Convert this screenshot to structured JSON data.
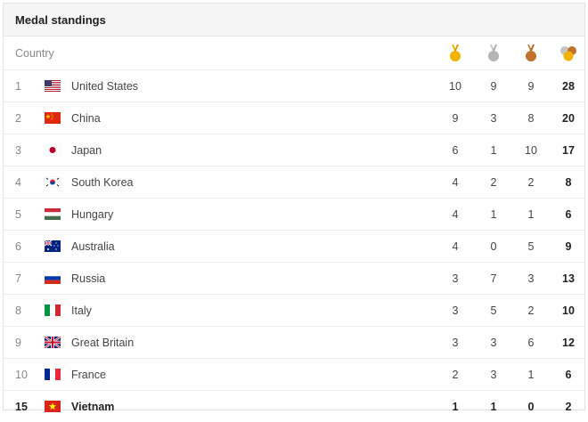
{
  "title": "Medal standings",
  "header": {
    "country_label": "Country",
    "icons": [
      "gold-medal-icon",
      "silver-medal-icon",
      "bronze-medal-icon",
      "total-medals-icon"
    ]
  },
  "colors": {
    "gold": "#f0b400",
    "silver": "#b5b5b5",
    "bronze": "#c0722a"
  },
  "rows": [
    {
      "rank": "1",
      "country": "United States",
      "flag": "us-flag-icon",
      "gold": "10",
      "silver": "9",
      "bronze": "9",
      "total": "28"
    },
    {
      "rank": "2",
      "country": "China",
      "flag": "china-flag-icon",
      "gold": "9",
      "silver": "3",
      "bronze": "8",
      "total": "20"
    },
    {
      "rank": "3",
      "country": "Japan",
      "flag": "japan-flag-icon",
      "gold": "6",
      "silver": "1",
      "bronze": "10",
      "total": "17"
    },
    {
      "rank": "4",
      "country": "South Korea",
      "flag": "south-korea-flag-icon",
      "gold": "4",
      "silver": "2",
      "bronze": "2",
      "total": "8"
    },
    {
      "rank": "5",
      "country": "Hungary",
      "flag": "hungary-flag-icon",
      "gold": "4",
      "silver": "1",
      "bronze": "1",
      "total": "6"
    },
    {
      "rank": "6",
      "country": "Australia",
      "flag": "australia-flag-icon",
      "gold": "4",
      "silver": "0",
      "bronze": "5",
      "total": "9"
    },
    {
      "rank": "7",
      "country": "Russia",
      "flag": "russia-flag-icon",
      "gold": "3",
      "silver": "7",
      "bronze": "3",
      "total": "13"
    },
    {
      "rank": "8",
      "country": "Italy",
      "flag": "italy-flag-icon",
      "gold": "3",
      "silver": "5",
      "bronze": "2",
      "total": "10"
    },
    {
      "rank": "9",
      "country": "Great Britain",
      "flag": "great-britain-flag-icon",
      "gold": "3",
      "silver": "3",
      "bronze": "6",
      "total": "12"
    },
    {
      "rank": "10",
      "country": "France",
      "flag": "france-flag-icon",
      "gold": "2",
      "silver": "3",
      "bronze": "1",
      "total": "6"
    },
    {
      "rank": "15",
      "country": "Vietnam",
      "flag": "vietnam-flag-icon",
      "gold": "1",
      "silver": "1",
      "bronze": "0",
      "total": "2"
    }
  ]
}
